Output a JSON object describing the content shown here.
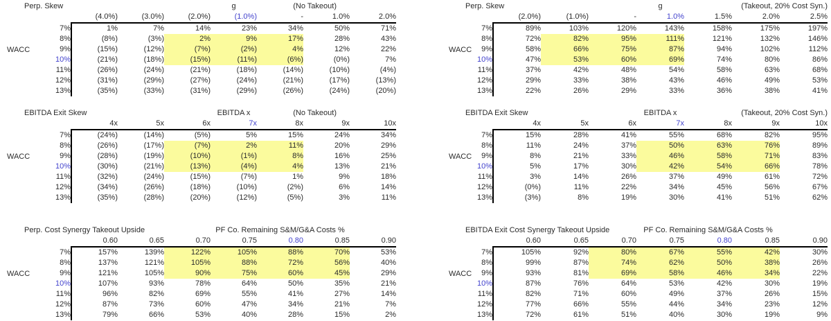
{
  "colors": {
    "background": "#ffffff",
    "highlight_yellow": "#fbfb9d",
    "base_case_blue": "#4343cd",
    "text": "#2b2b2b",
    "border": "#000000"
  },
  "wacc_label": "WACC",
  "row_headers": [
    "7%",
    "8%",
    "9%",
    "10%",
    "11%",
    "12%",
    "13%"
  ],
  "blue_row_index": 3,
  "tables": [
    {
      "id": "perp-skew-no-takeout",
      "title": "Perp. Skew",
      "center_header": "g",
      "right_header": "(No Takeout)",
      "col_headers": [
        "(4.0%)",
        "(3.0%)",
        "(2.0%)",
        "(1.0%)",
        "-",
        "1.0%",
        "2.0%"
      ],
      "blue_col_index": 3,
      "rows": [
        [
          "1%",
          "7%",
          "14%",
          "23%",
          "34%",
          "50%",
          "71%"
        ],
        [
          "(8%)",
          "(3%)",
          "2%",
          "9%",
          "17%",
          "28%",
          "43%"
        ],
        [
          "(15%)",
          "(12%)",
          "(7%)",
          "(2%)",
          "4%",
          "12%",
          "22%"
        ],
        [
          "(21%)",
          "(18%)",
          "(15%)",
          "(11%)",
          "(6%)",
          "(0%)",
          "7%"
        ],
        [
          "(26%)",
          "(24%)",
          "(21%)",
          "(18%)",
          "(14%)",
          "(10%)",
          "(4%)"
        ],
        [
          "(31%)",
          "(29%)",
          "(27%)",
          "(24%)",
          "(21%)",
          "(17%)",
          "(13%)"
        ],
        [
          "(35%)",
          "(33%)",
          "(31%)",
          "(29%)",
          "(26%)",
          "(24%)",
          "(20%)"
        ]
      ],
      "highlight": {
        "rows": [
          1,
          2,
          3
        ],
        "cols": [
          2,
          3,
          4
        ]
      }
    },
    {
      "id": "ebitda-exit-skew-no-takeout",
      "title": "EBITDA Exit Skew",
      "center_header": "EBITDA x",
      "right_header": "(No Takeout)",
      "col_headers": [
        "4x",
        "5x",
        "6x",
        "7x",
        "8x",
        "9x",
        "10x"
      ],
      "blue_col_index": 3,
      "rows": [
        [
          "(24%)",
          "(14%)",
          "(5%)",
          "5%",
          "15%",
          "24%",
          "34%"
        ],
        [
          "(26%)",
          "(17%)",
          "(7%)",
          "2%",
          "11%",
          "20%",
          "29%"
        ],
        [
          "(28%)",
          "(19%)",
          "(10%)",
          "(1%)",
          "8%",
          "16%",
          "25%"
        ],
        [
          "(30%)",
          "(21%)",
          "(13%)",
          "(4%)",
          "4%",
          "13%",
          "21%"
        ],
        [
          "(32%)",
          "(24%)",
          "(15%)",
          "(7%)",
          "1%",
          "9%",
          "18%"
        ],
        [
          "(34%)",
          "(26%)",
          "(18%)",
          "(10%)",
          "(2%)",
          "6%",
          "14%"
        ],
        [
          "(35%)",
          "(28%)",
          "(20%)",
          "(12%)",
          "(5%)",
          "3%",
          "11%"
        ]
      ],
      "highlight": {
        "rows": [
          1,
          2,
          3
        ],
        "cols": [
          2,
          3,
          4
        ]
      }
    },
    {
      "id": "perp-cost-synergy-takeout-upside",
      "title": "Perp. Cost Synergy Takeout Upside",
      "center_header": "PF Co. Remaining S&M/G&A Costs %",
      "right_header": "",
      "col_headers": [
        "0.60",
        "0.65",
        "0.70",
        "0.75",
        "0.80",
        "0.85",
        "0.90"
      ],
      "blue_col_index": 4,
      "rows": [
        [
          "157%",
          "139%",
          "122%",
          "105%",
          "88%",
          "70%",
          "53%"
        ],
        [
          "137%",
          "121%",
          "105%",
          "88%",
          "72%",
          "56%",
          "40%"
        ],
        [
          "121%",
          "105%",
          "90%",
          "75%",
          "60%",
          "45%",
          "29%"
        ],
        [
          "107%",
          "93%",
          "78%",
          "64%",
          "50%",
          "35%",
          "21%"
        ],
        [
          "96%",
          "82%",
          "69%",
          "55%",
          "41%",
          "27%",
          "14%"
        ],
        [
          "87%",
          "73%",
          "60%",
          "47%",
          "34%",
          "21%",
          "7%"
        ],
        [
          "79%",
          "66%",
          "53%",
          "40%",
          "28%",
          "15%",
          "2%"
        ]
      ],
      "highlight": {
        "rows": [
          0,
          1,
          2
        ],
        "cols": [
          2,
          3,
          4,
          5
        ]
      }
    },
    {
      "id": "perp-skew-takeout",
      "title": "Perp. Skew",
      "center_header": "g",
      "right_header": "(Takeout, 20% Cost Syn.)",
      "col_headers": [
        "(2.0%)",
        "(1.0%)",
        "-",
        "1.0%",
        "1.5%",
        "2.0%",
        "2.5%"
      ],
      "blue_col_index": 3,
      "rows": [
        [
          "89%",
          "103%",
          "120%",
          "143%",
          "158%",
          "175%",
          "197%"
        ],
        [
          "72%",
          "82%",
          "95%",
          "111%",
          "121%",
          "132%",
          "146%"
        ],
        [
          "58%",
          "66%",
          "75%",
          "87%",
          "94%",
          "102%",
          "112%"
        ],
        [
          "47%",
          "53%",
          "60%",
          "69%",
          "74%",
          "80%",
          "86%"
        ],
        [
          "37%",
          "42%",
          "48%",
          "54%",
          "58%",
          "63%",
          "68%"
        ],
        [
          "29%",
          "33%",
          "38%",
          "43%",
          "46%",
          "49%",
          "53%"
        ],
        [
          "22%",
          "26%",
          "29%",
          "33%",
          "36%",
          "38%",
          "41%"
        ]
      ],
      "highlight": {
        "rows": [
          1,
          2,
          3
        ],
        "cols": [
          1,
          2,
          3
        ]
      }
    },
    {
      "id": "ebitda-exit-skew-takeout",
      "title": "EBITDA Exit Skew",
      "center_header": "EBITDA x",
      "right_header": "(Takeout, 20% Cost Syn.)",
      "col_headers": [
        "4x",
        "5x",
        "6x",
        "7x",
        "8x",
        "9x",
        "10x"
      ],
      "blue_col_index": 3,
      "rows": [
        [
          "15%",
          "28%",
          "41%",
          "55%",
          "68%",
          "82%",
          "95%"
        ],
        [
          "11%",
          "24%",
          "37%",
          "50%",
          "63%",
          "76%",
          "89%"
        ],
        [
          "8%",
          "21%",
          "33%",
          "46%",
          "58%",
          "71%",
          "83%"
        ],
        [
          "5%",
          "17%",
          "30%",
          "42%",
          "54%",
          "66%",
          "78%"
        ],
        [
          "3%",
          "14%",
          "26%",
          "37%",
          "49%",
          "61%",
          "72%"
        ],
        [
          "(0%)",
          "11%",
          "22%",
          "34%",
          "45%",
          "56%",
          "67%"
        ],
        [
          "(3%)",
          "8%",
          "19%",
          "30%",
          "41%",
          "51%",
          "62%"
        ]
      ],
      "highlight": {
        "rows": [
          1,
          2,
          3
        ],
        "cols": [
          3,
          4,
          5
        ]
      }
    },
    {
      "id": "ebitda-exit-cost-synergy-takeout-upside",
      "title": "EBITDA Exit Cost Synergy Takeout Upside",
      "center_header": "PF Co. Remaining S&M/G&A Costs %",
      "right_header": "",
      "col_headers": [
        "0.60",
        "0.65",
        "0.70",
        "0.75",
        "0.80",
        "0.85",
        "0.90"
      ],
      "blue_col_index": 4,
      "rows": [
        [
          "105%",
          "92%",
          "80%",
          "67%",
          "55%",
          "42%",
          "30%"
        ],
        [
          "99%",
          "87%",
          "74%",
          "62%",
          "50%",
          "38%",
          "26%"
        ],
        [
          "93%",
          "81%",
          "69%",
          "58%",
          "46%",
          "34%",
          "22%"
        ],
        [
          "87%",
          "76%",
          "64%",
          "53%",
          "42%",
          "30%",
          "19%"
        ],
        [
          "82%",
          "71%",
          "60%",
          "49%",
          "37%",
          "26%",
          "15%"
        ],
        [
          "77%",
          "66%",
          "55%",
          "44%",
          "34%",
          "23%",
          "12%"
        ],
        [
          "72%",
          "61%",
          "51%",
          "40%",
          "30%",
          "19%",
          "9%"
        ]
      ],
      "highlight": {
        "rows": [
          0,
          1,
          2
        ],
        "cols": [
          2,
          3,
          4,
          5
        ]
      }
    }
  ]
}
